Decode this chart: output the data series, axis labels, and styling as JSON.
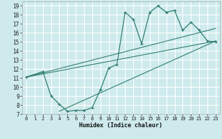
{
  "xlabel": "Humidex (Indice chaleur)",
  "bg_color": "#ceeaed",
  "grid_color": "#ffffff",
  "line_color": "#2e7d6e",
  "xlim": [
    -0.5,
    23.5
  ],
  "ylim": [
    7,
    19.5
  ],
  "xticks": [
    0,
    1,
    2,
    3,
    4,
    5,
    6,
    7,
    8,
    9,
    10,
    11,
    12,
    13,
    14,
    15,
    16,
    17,
    18,
    19,
    20,
    21,
    22,
    23
  ],
  "yticks": [
    7,
    8,
    9,
    10,
    11,
    12,
    13,
    14,
    15,
    16,
    17,
    18,
    19
  ],
  "curve_x": [
    0,
    2,
    3,
    4,
    5,
    6,
    7,
    8,
    9,
    10,
    11,
    12,
    13,
    14,
    15,
    16,
    17,
    18,
    19,
    20,
    21,
    22,
    23
  ],
  "curve_y": [
    11.1,
    11.7,
    9.0,
    8.1,
    7.3,
    7.4,
    7.4,
    7.7,
    9.7,
    12.1,
    12.5,
    18.3,
    17.5,
    14.8,
    18.3,
    19.0,
    18.3,
    18.5,
    16.3,
    17.2,
    16.3,
    15.1,
    15.0
  ],
  "trend1_x": [
    0,
    23
  ],
  "trend1_y": [
    11.1,
    15.1
  ],
  "trend2_x": [
    4,
    23
  ],
  "trend2_y": [
    7.3,
    15.1
  ],
  "trend3_x": [
    0,
    23
  ],
  "trend3_y": [
    11.1,
    16.5
  ]
}
